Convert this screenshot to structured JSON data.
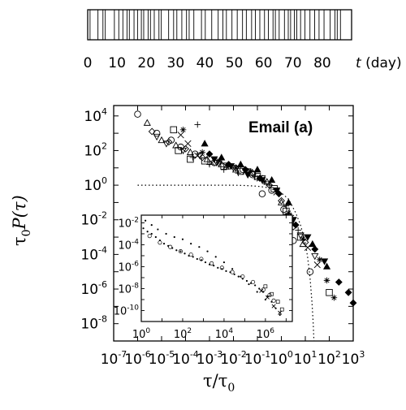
{
  "chart_data": [
    {
      "type": "barcode-timeline",
      "title": "",
      "xlabel_var": "t",
      "xlabel_unit": "(day)",
      "xlim": [
        0,
        90
      ],
      "ticks": [
        "0",
        "10",
        "20",
        "30",
        "40",
        "50",
        "60",
        "70",
        "80"
      ],
      "event_times": [
        0.8,
        3.5,
        5.2,
        6.0,
        9.1,
        10.6,
        12.0,
        13.4,
        14.2,
        15.8,
        17.0,
        18.3,
        19.1,
        20.6,
        21.4,
        22.7,
        24.3,
        25.1,
        27.6,
        29.3,
        30.4,
        32.1,
        33.7,
        34.6,
        36.2,
        38.8,
        40.1,
        42.3,
        44.5,
        46.1,
        47.3,
        49.2,
        51.0,
        52.8,
        54.1,
        55.9,
        57.2,
        58.7,
        60.3,
        61.6,
        63.2,
        64.0,
        65.3,
        67.1,
        68.4,
        69.2,
        70.5,
        71.3,
        72.6,
        74.1,
        75.8,
        77.4,
        78.9,
        80.6,
        82.7,
        84.3,
        85.1,
        86.2
      ]
    },
    {
      "type": "scatter",
      "title": "Email  (a)",
      "xlabel_var": "τ/τ",
      "xlabel_sub": "0",
      "ylabel_pre": "τ",
      "ylabel_sub": "0",
      "ylabel_post": "P(τ)",
      "xscale": "log",
      "yscale": "log",
      "xlim_exp": [
        -7,
        3
      ],
      "ylim_exp": [
        -9,
        4.6
      ],
      "x_tick_exponents": [
        "-7",
        "-6",
        "-5",
        "-4",
        "-3",
        "-2",
        "-1",
        "0",
        "1",
        "2",
        "3"
      ],
      "y_tick_exponents": [
        "4",
        "2",
        "0",
        "-2",
        "-4",
        "-6",
        "-8"
      ],
      "tick_base": "10",
      "series": [
        {
          "name": "open circles",
          "marker": "circle",
          "points": [
            [
              -6,
              4.1
            ],
            [
              -5.2,
              3.0
            ],
            [
              -4.6,
              2.6
            ],
            [
              -4.2,
              2.2
            ],
            [
              -3.6,
              1.8
            ],
            [
              -2.8,
              1.3
            ],
            [
              -2.2,
              1.1
            ],
            [
              -1.6,
              0.9
            ],
            [
              -1.2,
              0.6
            ],
            [
              -0.8,
              -0.5
            ],
            [
              -0.4,
              -0.3
            ],
            [
              0.1,
              -1.4
            ],
            [
              0.5,
              -3.2
            ],
            [
              1.2,
              -5.0
            ]
          ]
        },
        {
          "name": "up triangles",
          "marker": "triangle",
          "points": [
            [
              -5.6,
              3.6
            ],
            [
              -5.0,
              2.6
            ],
            [
              -4.4,
              2.3
            ],
            [
              -3.8,
              1.9
            ],
            [
              -3.1,
              1.5
            ],
            [
              -2.5,
              1.2
            ],
            [
              -1.9,
              0.9
            ],
            [
              -1.3,
              0.7
            ],
            [
              -0.6,
              0.2
            ],
            [
              0.0,
              -1.0
            ],
            [
              0.4,
              -2.2
            ],
            [
              0.9,
              -3.4
            ]
          ]
        },
        {
          "name": "down triangles",
          "marker": "triangle-down",
          "points": [
            [
              -5.2,
              2.8
            ],
            [
              -4.8,
              2.4
            ],
            [
              -4.1,
              2.0
            ],
            [
              -3.4,
              1.7
            ],
            [
              -2.7,
              1.3
            ],
            [
              -2.0,
              1.0
            ],
            [
              -1.4,
              0.8
            ],
            [
              -0.8,
              0.4
            ],
            [
              -0.2,
              -0.3
            ],
            [
              0.3,
              -1.8
            ],
            [
              0.8,
              -2.9
            ],
            [
              1.4,
              -4.1
            ]
          ]
        },
        {
          "name": "diamonds",
          "marker": "diamond",
          "points": [
            [
              -5.4,
              3.1
            ],
            [
              -4.7,
              2.5
            ],
            [
              -4.0,
              2.1
            ],
            [
              -3.3,
              1.6
            ],
            [
              -2.6,
              1.3
            ],
            [
              -1.9,
              1.0
            ],
            [
              -1.2,
              0.7
            ],
            [
              -0.5,
              0.0
            ],
            [
              0.0,
              -0.9
            ],
            [
              0.5,
              -2.4
            ],
            [
              1.0,
              -3.3
            ]
          ]
        },
        {
          "name": "squares",
          "marker": "square",
          "points": [
            [
              -4.5,
              3.2
            ],
            [
              -4.3,
              2.0
            ],
            [
              -3.8,
              1.5
            ],
            [
              -3.2,
              1.4
            ],
            [
              -2.4,
              1.1
            ],
            [
              -1.7,
              0.8
            ],
            [
              -1.0,
              0.5
            ],
            [
              -0.3,
              -0.2
            ],
            [
              0.2,
              -1.5
            ],
            [
              0.8,
              -3.0
            ],
            [
              2.0,
              -6.2
            ]
          ]
        },
        {
          "name": "crosses",
          "marker": "cross",
          "points": [
            [
              -4.2,
              2.9
            ],
            [
              -3.9,
              2.4
            ],
            [
              -3.5,
              1.7
            ],
            [
              -2.9,
              1.3
            ],
            [
              -2.3,
              1.1
            ],
            [
              -1.5,
              0.8
            ],
            [
              -0.9,
              0.4
            ],
            [
              -0.2,
              -0.4
            ],
            [
              0.4,
              -1.9
            ],
            [
              1.1,
              -3.6
            ],
            [
              1.5,
              -4.6
            ]
          ]
        },
        {
          "name": "pluses",
          "marker": "plus",
          "points": [
            [
              -3.5,
              3.5
            ],
            [
              -3.7,
              1.6
            ],
            [
              -3.0,
              1.2
            ],
            [
              -2.4,
              0.9
            ],
            [
              -1.8,
              0.7
            ],
            [
              -1.1,
              0.5
            ],
            [
              -0.5,
              0.0
            ],
            [
              0.2,
              -1.2
            ],
            [
              0.7,
              -2.6
            ]
          ]
        },
        {
          "name": "asterisks",
          "marker": "star",
          "points": [
            [
              -4.1,
              3.2
            ],
            [
              -3.3,
              1.9
            ],
            [
              -2.6,
              1.4
            ],
            [
              -1.9,
              1.0
            ],
            [
              -1.3,
              0.8
            ],
            [
              -0.7,
              0.2
            ],
            [
              0.3,
              -1.6
            ],
            [
              0.9,
              -3.1
            ],
            [
              1.6,
              -4.3
            ],
            [
              1.9,
              -5.5
            ],
            [
              2.2,
              -6.5
            ]
          ]
        },
        {
          "name": "filled triangles",
          "marker": "triangle-filled",
          "points": [
            [
              -3.2,
              2.4
            ],
            [
              -2.5,
              1.6
            ],
            [
              -1.7,
              1.2
            ],
            [
              -1.0,
              0.9
            ],
            [
              -0.4,
              0.3
            ],
            [
              0.3,
              -1.0
            ],
            [
              1.3,
              -3.4
            ],
            [
              1.9,
              -4.7
            ]
          ]
        },
        {
          "name": "filled down triangles",
          "marker": "triangle-down-filled",
          "points": [
            [
              -2.8,
              1.5
            ],
            [
              -2.1,
              1.1
            ],
            [
              -1.4,
              0.6
            ],
            [
              -0.8,
              0.3
            ],
            [
              -0.2,
              -0.3
            ],
            [
              0.5,
              -2.0
            ],
            [
              1.1,
              -3.0
            ],
            [
              1.8,
              -4.4
            ]
          ]
        },
        {
          "name": "filled diamonds",
          "marker": "diamond-filled",
          "points": [
            [
              -3.0,
              1.8
            ],
            [
              -2.2,
              1.2
            ],
            [
              -1.5,
              0.9
            ],
            [
              -0.9,
              0.4
            ],
            [
              -0.1,
              -0.5
            ],
            [
              0.6,
              -2.3
            ],
            [
              1.4,
              -3.7
            ],
            [
              2.4,
              -5.6
            ],
            [
              2.8,
              -6.2
            ],
            [
              3.0,
              -6.8
            ]
          ]
        }
      ],
      "dotted_curve": {
        "style": "dotted",
        "points": [
          [
            -6,
            0
          ],
          [
            -5,
            0
          ],
          [
            -4,
            0
          ],
          [
            -3,
            0
          ],
          [
            -2,
            0
          ],
          [
            -1.5,
            -0.02
          ],
          [
            -1,
            -0.06
          ],
          [
            -0.5,
            -0.15
          ],
          [
            0,
            -0.45
          ],
          [
            0.3,
            -0.8
          ],
          [
            0.6,
            -1.6
          ],
          [
            0.8,
            -2.3
          ],
          [
            1.0,
            -3.3
          ],
          [
            1.1,
            -4.2
          ],
          [
            1.2,
            -5.4
          ],
          [
            1.28,
            -6.8
          ],
          [
            1.33,
            -8.0
          ],
          [
            1.36,
            -9.0
          ]
        ]
      }
    },
    {
      "type": "scatter",
      "title": "inset",
      "xscale": "log",
      "yscale": "log",
      "xlim_exp": [
        0,
        7.3
      ],
      "ylim_exp": [
        -11,
        -1.3
      ],
      "x_tick_exponents": [
        "0",
        "2",
        "4",
        "6"
      ],
      "y_tick_exponents": [
        "-2",
        "-4",
        "-6",
        "-8",
        "-10"
      ],
      "tick_base": "10",
      "series": [
        {
          "name": "inset small points",
          "marker": "dot",
          "points": [
            [
              0.1,
              -2.5
            ],
            [
              0.3,
              -2.8
            ],
            [
              0.5,
              -3.0
            ],
            [
              0.7,
              -3.3
            ],
            [
              0.9,
              -3.6
            ],
            [
              1.1,
              -3.9
            ],
            [
              1.3,
              -4.1
            ],
            [
              1.5,
              -4.3
            ],
            [
              1.7,
              -4.5
            ],
            [
              1.9,
              -4.6
            ],
            [
              2.1,
              -4.8
            ],
            [
              2.3,
              -5.0
            ],
            [
              2.5,
              -5.1
            ],
            [
              2.7,
              -5.3
            ],
            [
              2.9,
              -5.4
            ],
            [
              3.1,
              -5.6
            ],
            [
              3.3,
              -5.8
            ],
            [
              3.5,
              -5.9
            ],
            [
              3.7,
              -6.1
            ],
            [
              3.9,
              -6.2
            ],
            [
              4.1,
              -6.4
            ],
            [
              4.3,
              -6.5
            ],
            [
              4.5,
              -6.7
            ],
            [
              4.7,
              -6.9
            ],
            [
              4.9,
              -7.1
            ],
            [
              5.1,
              -7.3
            ],
            [
              5.3,
              -7.5
            ],
            [
              5.5,
              -7.7
            ],
            [
              5.7,
              -8.0
            ],
            [
              5.9,
              -8.3
            ],
            [
              6.1,
              -8.7
            ],
            [
              6.3,
              -9.2
            ],
            [
              6.5,
              -9.8
            ],
            [
              6.7,
              -10.4
            ]
          ]
        },
        {
          "name": "inset upper points",
          "marker": "dot",
          "points": [
            [
              0.2,
              -1.8
            ],
            [
              0.5,
              -2.2
            ],
            [
              0.8,
              -2.6
            ],
            [
              1.2,
              -3.0
            ],
            [
              1.6,
              -3.3
            ],
            [
              2.0,
              -3.5
            ],
            [
              2.4,
              -3.9
            ],
            [
              2.8,
              -4.2
            ],
            [
              3.2,
              -4.6
            ],
            [
              3.6,
              -5.1
            ],
            [
              4.0,
              -5.6
            ],
            [
              4.4,
              -6.2
            ],
            [
              4.8,
              -6.9
            ],
            [
              5.2,
              -7.6
            ],
            [
              5.6,
              -8.3
            ],
            [
              6.0,
              -9.0
            ]
          ]
        },
        {
          "name": "inset open markers",
          "marker": "circle-small",
          "points": [
            [
              0.4,
              -3.2
            ],
            [
              0.9,
              -3.8
            ],
            [
              1.4,
              -4.2
            ],
            [
              1.9,
              -4.6
            ],
            [
              2.4,
              -4.9
            ],
            [
              2.9,
              -5.3
            ],
            [
              3.4,
              -5.7
            ],
            [
              3.9,
              -6.1
            ],
            [
              4.4,
              -6.5
            ],
            [
              4.9,
              -6.9
            ],
            [
              5.4,
              -7.4
            ],
            [
              5.9,
              -8.1
            ],
            [
              6.2,
              -8.6
            ],
            [
              6.4,
              -9.1
            ]
          ]
        },
        {
          "name": "inset squares",
          "marker": "square-small",
          "points": [
            [
              6.0,
              -7.8
            ],
            [
              6.3,
              -8.5
            ],
            [
              6.6,
              -9.2
            ],
            [
              6.8,
              -9.9
            ]
          ]
        },
        {
          "name": "inset crosses",
          "marker": "cross-small",
          "points": [
            [
              5.8,
              -8.2
            ],
            [
              6.1,
              -8.8
            ],
            [
              6.4,
              -9.6
            ],
            [
              6.7,
              -10.2
            ]
          ]
        }
      ]
    }
  ]
}
